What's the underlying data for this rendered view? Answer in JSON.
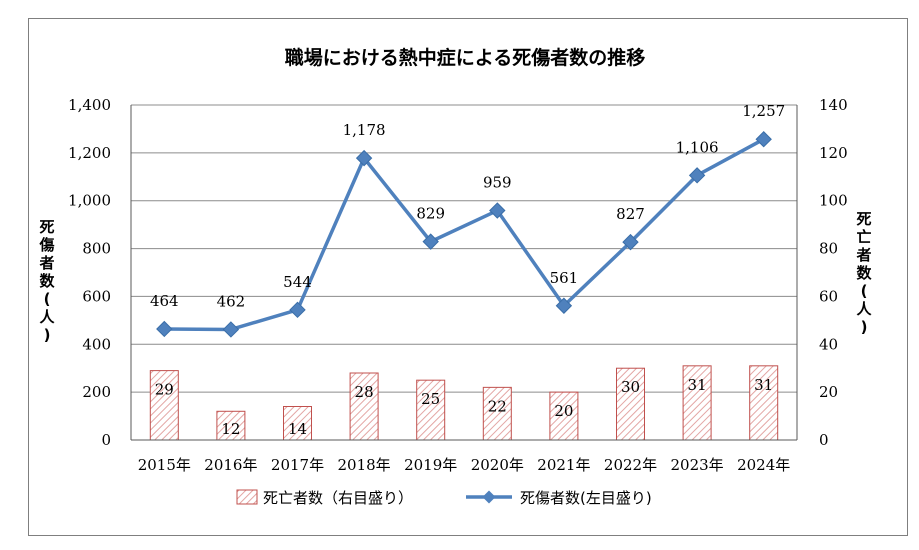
{
  "chart_data": {
    "type": "bar+line",
    "title": "職場における熱中症による死傷者数の推移",
    "categories": [
      "2015年",
      "2016年",
      "2017年",
      "2018年",
      "2019年",
      "2020年",
      "2021年",
      "2022年",
      "2023年",
      "2024年"
    ],
    "series": [
      {
        "name": "死亡者数（右目盛り）",
        "type": "bar",
        "axis": "right",
        "values": [
          29,
          12,
          14,
          28,
          25,
          22,
          20,
          30,
          31,
          31
        ],
        "color": "#c0504d"
      },
      {
        "name": "死傷者数(左目盛り)",
        "type": "line",
        "axis": "left",
        "values": [
          464,
          462,
          544,
          1178,
          829,
          959,
          561,
          827,
          1106,
          1257
        ],
        "color": "#4f81bd"
      }
    ],
    "y_left": {
      "label": "死傷者数(人)",
      "ylim": [
        0,
        1400
      ],
      "ticks": [
        0,
        200,
        400,
        600,
        800,
        1000,
        1200,
        1400
      ],
      "tick_labels": [
        "0",
        "200",
        "400",
        "600",
        "800",
        "1,000",
        "1,200",
        "1,400"
      ]
    },
    "y_right": {
      "label": "死亡者数(人)",
      "ylim": [
        0,
        140
      ],
      "ticks": [
        0,
        20,
        40,
        60,
        80,
        100,
        120,
        140
      ],
      "tick_labels": [
        "0",
        "20",
        "40",
        "60",
        "80",
        "100",
        "120",
        "140"
      ]
    },
    "line_labels": [
      "464",
      "462",
      "544",
      "1,178",
      "829",
      "959",
      "561",
      "827",
      "1,106",
      "1,257"
    ],
    "bar_labels": [
      "29",
      "12",
      "14",
      "28",
      "25",
      "22",
      "20",
      "30",
      "31",
      "31"
    ],
    "grid": true,
    "legend_position": "bottom"
  }
}
